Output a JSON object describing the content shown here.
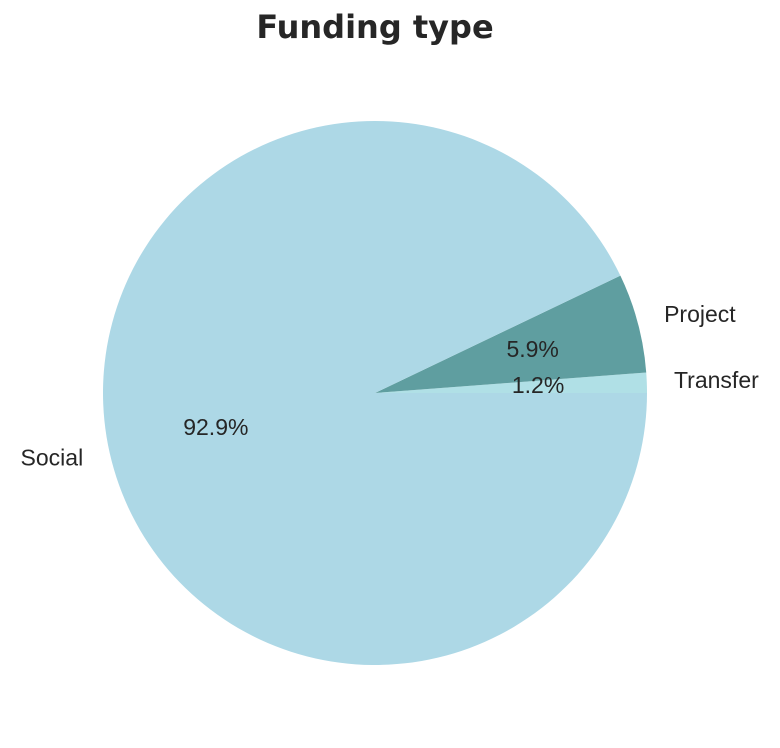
{
  "chart_data": {
    "type": "pie",
    "title": "Funding type",
    "categories": [
      "Transfer",
      "Project",
      "Social"
    ],
    "values": [
      1.2,
      5.9,
      92.9
    ],
    "labels": [
      "1.2%",
      "5.9%",
      "92.9%"
    ],
    "colors": [
      "#b0e0e6",
      "#5f9ea0",
      "#add8e6"
    ],
    "start_angle": "0 degrees (3 o'clock), counter-clockwise",
    "legend": "none"
  }
}
